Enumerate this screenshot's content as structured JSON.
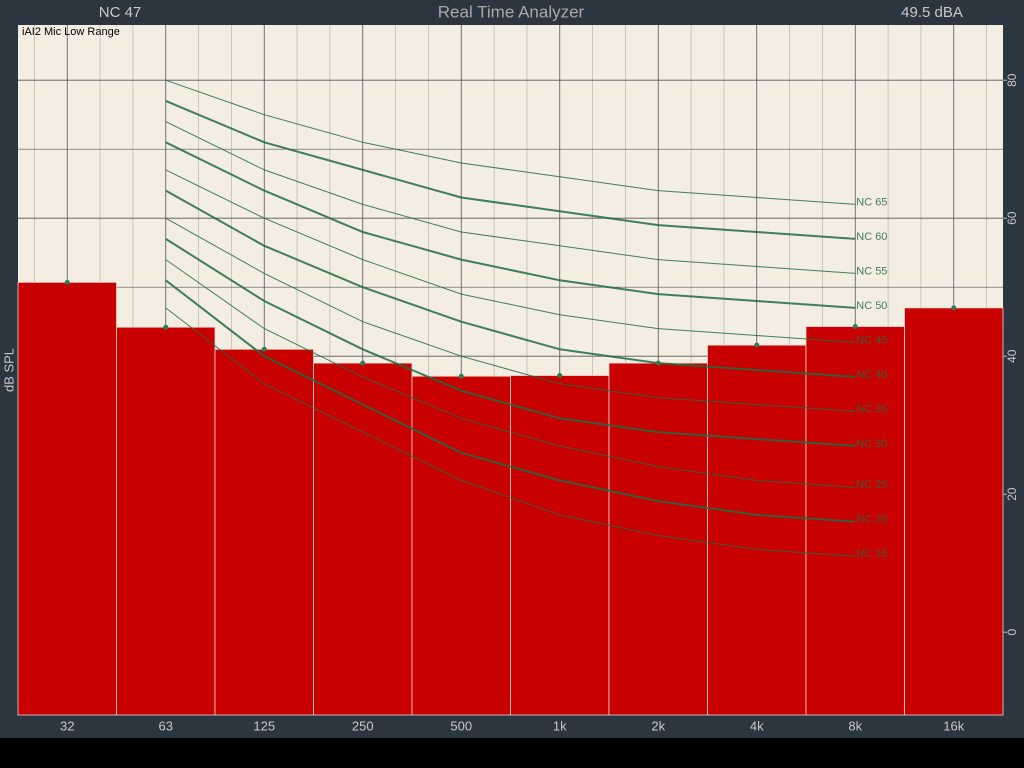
{
  "header": {
    "nc_reading": "NC  47",
    "title": "Real Time Analyzer",
    "dba_reading": "49.5 dBA"
  },
  "chart_data": {
    "type": "bar",
    "subtitle": "iAI2 Mic Low Range",
    "y_label": "dB SPL",
    "categories": [
      "32",
      "63",
      "125",
      "250",
      "500",
      "1k",
      "2k",
      "4k",
      "8k",
      "16k"
    ],
    "values": [
      50.7,
      44.2,
      41.0,
      39.0,
      37.1,
      37.2,
      39.0,
      41.6,
      44.3,
      47.0
    ],
    "color": "#c80000",
    "ylim": [
      -12,
      88
    ],
    "yticks": [
      0,
      20,
      40,
      60,
      80
    ],
    "grid": true,
    "curves": [
      {
        "name": "NC 15",
        "color": "#1e6b44",
        "width": 1,
        "values": [
          null,
          47,
          36,
          29,
          22,
          17,
          14,
          12,
          11,
          null
        ]
      },
      {
        "name": "NC 20",
        "color": "#1e6b44",
        "width": 2,
        "values": [
          null,
          51,
          40,
          33,
          26,
          22,
          19,
          17,
          16,
          null
        ]
      },
      {
        "name": "NC 25",
        "color": "#1e6b44",
        "width": 1,
        "values": [
          null,
          54,
          44,
          37,
          31,
          27,
          24,
          22,
          21,
          null
        ]
      },
      {
        "name": "NC 30",
        "color": "#1e6b44",
        "width": 2,
        "values": [
          null,
          57,
          48,
          41,
          35,
          31,
          29,
          28,
          27,
          null
        ]
      },
      {
        "name": "NC 35",
        "color": "#1e6b44",
        "width": 1,
        "values": [
          null,
          60,
          52,
          45,
          40,
          36,
          34,
          33,
          32,
          null
        ]
      },
      {
        "name": "NC 40",
        "color": "#1e6b44",
        "width": 2,
        "values": [
          null,
          64,
          56,
          50,
          45,
          41,
          39,
          38,
          37,
          null
        ]
      },
      {
        "name": "NC 45",
        "color": "#1e6b44",
        "width": 1,
        "values": [
          null,
          67,
          60,
          54,
          49,
          46,
          44,
          43,
          42,
          null
        ]
      },
      {
        "name": "NC 50",
        "color": "#1e6b44",
        "width": 2,
        "values": [
          null,
          71,
          64,
          58,
          54,
          51,
          49,
          48,
          47,
          null
        ]
      },
      {
        "name": "NC 55",
        "color": "#1e6b44",
        "width": 1,
        "values": [
          null,
          74,
          67,
          62,
          58,
          56,
          54,
          53,
          52,
          null
        ]
      },
      {
        "name": "NC 60",
        "color": "#1e6b44",
        "width": 2,
        "values": [
          null,
          77,
          71,
          67,
          63,
          61,
          59,
          58,
          57,
          null
        ]
      },
      {
        "name": "NC 65",
        "color": "#1e6b44",
        "width": 1,
        "values": [
          null,
          80,
          75,
          71,
          68,
          66,
          64,
          63,
          62,
          null
        ]
      }
    ]
  }
}
